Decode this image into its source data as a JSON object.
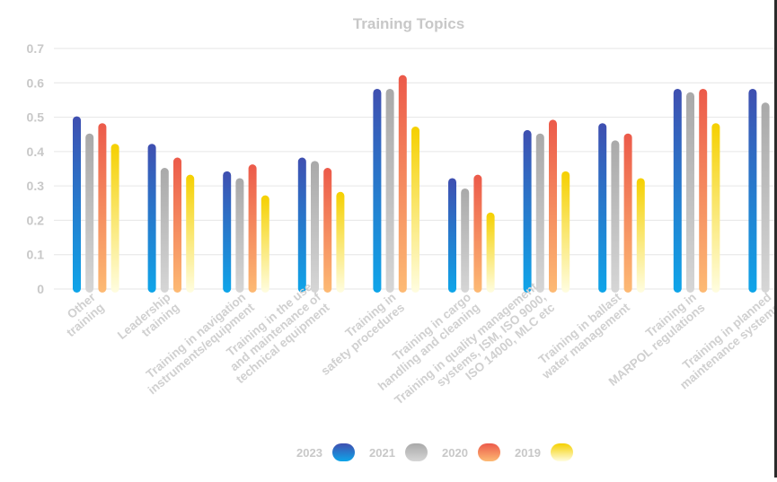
{
  "chart_data": {
    "type": "bar",
    "title": "Training Topics",
    "xlabel": "",
    "ylabel": "",
    "ylim": [
      0,
      0.7
    ],
    "yticks": [
      "0",
      "0.1",
      "0.2",
      "0.3",
      "0.4",
      "0.5",
      "0.6",
      "0.7"
    ],
    "grid": true,
    "legend_position": "bottom",
    "categories": [
      [
        "Other",
        "training"
      ],
      [
        "Leadership",
        "training"
      ],
      [
        "Training in navigation",
        "instruments/equipment"
      ],
      [
        "Training in the use",
        "and maintenance of",
        "technical equipment"
      ],
      [
        "Training in",
        "safety procedures"
      ],
      [
        "Training in cargo",
        "handling and cleaning"
      ],
      [
        "Training in quality management",
        "systems, ISM, ISO 9000,",
        "ISO 14000, MLC etc"
      ],
      [
        "Training in ballast",
        "water management"
      ],
      [
        "Training in",
        "MARPOL regulations"
      ],
      [
        "Training in planned",
        "maintenance systems"
      ]
    ],
    "series": [
      {
        "name": "2023",
        "colors": [
          "#3f4fb0",
          "#0ea5e9"
        ],
        "values": [
          0.5,
          0.42,
          0.34,
          0.38,
          0.58,
          0.32,
          0.46,
          0.48,
          0.58,
          0.58
        ]
      },
      {
        "name": "2021",
        "colors": [
          "#a9a9a9",
          "#d6d6d6"
        ],
        "values": [
          0.45,
          0.35,
          0.32,
          0.37,
          0.58,
          0.29,
          0.45,
          0.43,
          0.57,
          0.54
        ]
      },
      {
        "name": "2020",
        "colors": [
          "#ec5a4a",
          "#fdba74"
        ],
        "values": [
          0.48,
          0.38,
          0.36,
          0.35,
          0.62,
          0.33,
          0.49,
          0.45,
          0.58,
          null
        ]
      },
      {
        "name": "2019",
        "colors": [
          "#f5d000",
          "#fffde0"
        ],
        "values": [
          0.42,
          0.33,
          0.27,
          0.28,
          0.47,
          0.22,
          0.34,
          0.32,
          0.48,
          null
        ]
      }
    ]
  }
}
